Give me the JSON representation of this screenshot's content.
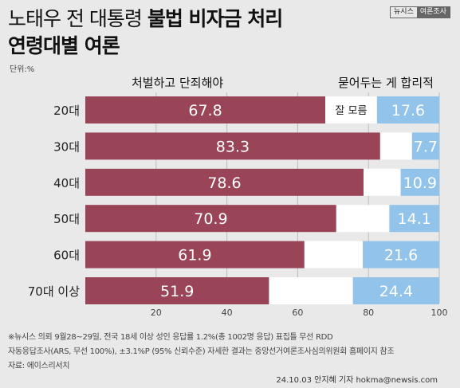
{
  "title": {
    "line1_plain": "노태우 전 대통령 ",
    "line1_bold": "불법 비자금 처리",
    "line2": "연령대별 여론"
  },
  "badge": {
    "part1": "뉴시스",
    "part2": "여론조사"
  },
  "unit_label": "단위:%",
  "legend": {
    "punish": "처벌하고 단죄해야",
    "bury": "묻어두는 게 합리적",
    "unknown": "잘 모름"
  },
  "colors": {
    "punish": "#9a4457",
    "unknown": "#ffffff",
    "bury": "#92c3ea",
    "background": "#e9e9e9"
  },
  "chart_data": {
    "type": "bar",
    "orientation": "horizontal",
    "stacked": true,
    "categories": [
      "20대",
      "30대",
      "40대",
      "50대",
      "60대",
      "70대 이상"
    ],
    "series": [
      {
        "name": "처벌하고 단죄해야",
        "values": [
          67.8,
          83.3,
          78.6,
          70.9,
          61.9,
          51.9
        ],
        "color": "#9a4457"
      },
      {
        "name": "잘 모름",
        "values": [
          14.6,
          9.0,
          10.5,
          15.0,
          16.5,
          23.7
        ],
        "color": "#ffffff"
      },
      {
        "name": "묻어두는 게 합리적",
        "values": [
          17.6,
          7.7,
          10.9,
          14.1,
          21.6,
          24.4
        ],
        "color": "#92c3ea"
      }
    ],
    "xlim": [
      0,
      100
    ],
    "xticks": [
      20,
      40,
      60,
      80,
      100
    ],
    "grid": true
  },
  "footnotes": {
    "line1": "※뉴시스 의뢰 9월28~29일, 전국 18세 이상 성인 응답률 1.2%(총 1002명 응답) 표집틀 무선 RDD",
    "line2": "자동응답조사(ARS, 무선 100%), ±3.1%P (95% 신뢰수준) 자세한 결과는 중앙선거여론조사심의위원회 홈페이지 참조",
    "line3": "자료: 에이스리서치"
  },
  "credit": "24.10.03 안지혜 기자 hokma@newsis.com"
}
